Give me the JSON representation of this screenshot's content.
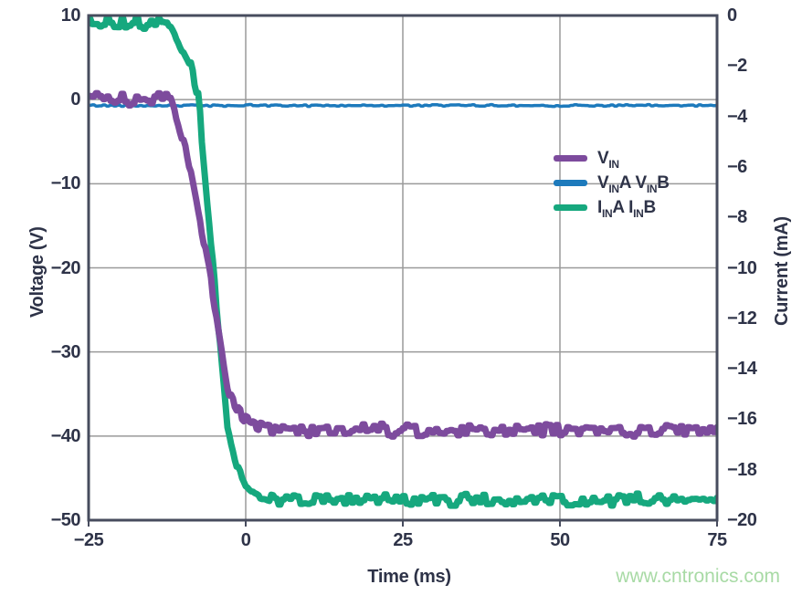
{
  "watermark": {
    "text": "www.cntronics.com",
    "color": "#a8daa5"
  },
  "chart_data": {
    "type": "line",
    "title": "",
    "xlabel": "Time (ms)",
    "ylabel_left": "Voltage (V)",
    "ylabel_right": "Current (mA)",
    "xlim": [
      -25,
      75
    ],
    "ylim_left": [
      -50,
      10
    ],
    "ylim_right": [
      -20,
      0
    ],
    "x_ticks": [
      -25,
      0,
      25,
      50,
      75
    ],
    "y_ticks_left": [
      10,
      0,
      -10,
      -20,
      -30,
      -40,
      -50
    ],
    "y_ticks_right": [
      0,
      -2,
      -4,
      -6,
      -8,
      -10,
      -12,
      -14,
      -16,
      -18,
      -20
    ],
    "grid": {
      "show": true,
      "vertical_at": [
        0,
        25,
        50
      ],
      "horizontal_at": [
        0,
        -10,
        -20,
        -30,
        -40
      ],
      "color": "#9a9a9a"
    },
    "axis_color": "#474c5e",
    "tick_label_color": "#2e3348",
    "legend": {
      "position": "inside-right",
      "entries": [
        {
          "name": "VIN",
          "color": "#7d4b9d",
          "label_parts": [
            {
              "t": "V"
            },
            {
              "s": "IN"
            }
          ]
        },
        {
          "name": "VINA VINB",
          "color": "#1d7abc",
          "label_parts": [
            {
              "t": "V"
            },
            {
              "s": "IN"
            },
            {
              "t": "A V"
            },
            {
              "s": "IN"
            },
            {
              "t": "B"
            }
          ]
        },
        {
          "name": "IINA IINB",
          "color": "#16a87e",
          "label_parts": [
            {
              "t": "I"
            },
            {
              "s": "IN"
            },
            {
              "t": "A I"
            },
            {
              "s": "IN"
            },
            {
              "t": "B"
            }
          ]
        }
      ]
    },
    "series": [
      {
        "id": "vina-vinb",
        "name": "VINA VINB",
        "axis": "left",
        "color": "#1d7abc",
        "stroke_width": 3.5,
        "noise": 0.13,
        "points": [
          [
            -25,
            -0.7
          ],
          [
            75,
            -0.7
          ]
        ]
      },
      {
        "id": "iina-iinb",
        "name": "IINA IINB",
        "axis": "right",
        "color": "#16a87e",
        "stroke_width": 7,
        "noise": 0.3,
        "points": [
          [
            -25,
            -0.3
          ],
          [
            -12,
            -0.3
          ],
          [
            -9,
            -1.8
          ],
          [
            -7.5,
            -3.4
          ],
          [
            -4.1,
            -13.0
          ],
          [
            -2.9,
            -16.4
          ],
          [
            -1.5,
            -17.8
          ],
          [
            0,
            -18.6
          ],
          [
            2,
            -19.0
          ],
          [
            5,
            -19.2
          ],
          [
            75,
            -19.2
          ]
        ]
      },
      {
        "id": "vin",
        "name": "VIN",
        "axis": "left",
        "color": "#7d4b9d",
        "stroke_width": 7,
        "noise": 0.9,
        "points": [
          [
            -25,
            0
          ],
          [
            -11.9,
            0
          ],
          [
            -9.3,
            -6.6
          ],
          [
            -5.7,
            -20.7
          ],
          [
            -2.8,
            -34.8
          ],
          [
            -1.5,
            -36.8
          ],
          [
            0,
            -38.0
          ],
          [
            2,
            -38.8
          ],
          [
            5,
            -39.3
          ],
          [
            75,
            -39.4
          ]
        ]
      }
    ]
  }
}
